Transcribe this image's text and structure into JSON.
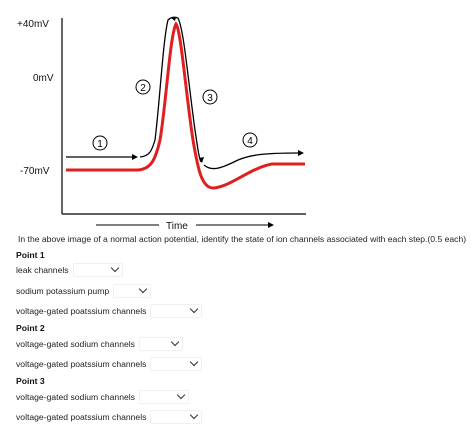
{
  "figure": {
    "y_labels": [
      "+40mV",
      "0mV",
      "-70mV"
    ],
    "x_label": "Time",
    "step_markers": [
      "1",
      "2",
      "3",
      "4"
    ],
    "colors": {
      "black_curve": "#000000",
      "red_curve": "#e02020",
      "axis": "#000000"
    }
  },
  "question": {
    "text": "In the above image of a normal action potential, identify the state of ion channels associated with each step.(0.5 each)"
  },
  "points": [
    {
      "title": "Point 1",
      "rows": [
        {
          "label": "leak channels",
          "selected": ""
        },
        {
          "label": "sodium potassium pump",
          "selected": ""
        },
        {
          "label": "voltage-gated poatssium channels",
          "selected": ""
        }
      ]
    },
    {
      "title": "Point 2",
      "rows": [
        {
          "label": "voltage-gated sodium channels",
          "selected": ""
        },
        {
          "label": "voltage-gated poatssium channels",
          "selected": ""
        }
      ]
    },
    {
      "title": "Point 3",
      "rows": [
        {
          "label": "voltage-gated sodium channels",
          "selected": ""
        },
        {
          "label": "voltage-gated poatssium channels",
          "selected": ""
        }
      ]
    }
  ]
}
